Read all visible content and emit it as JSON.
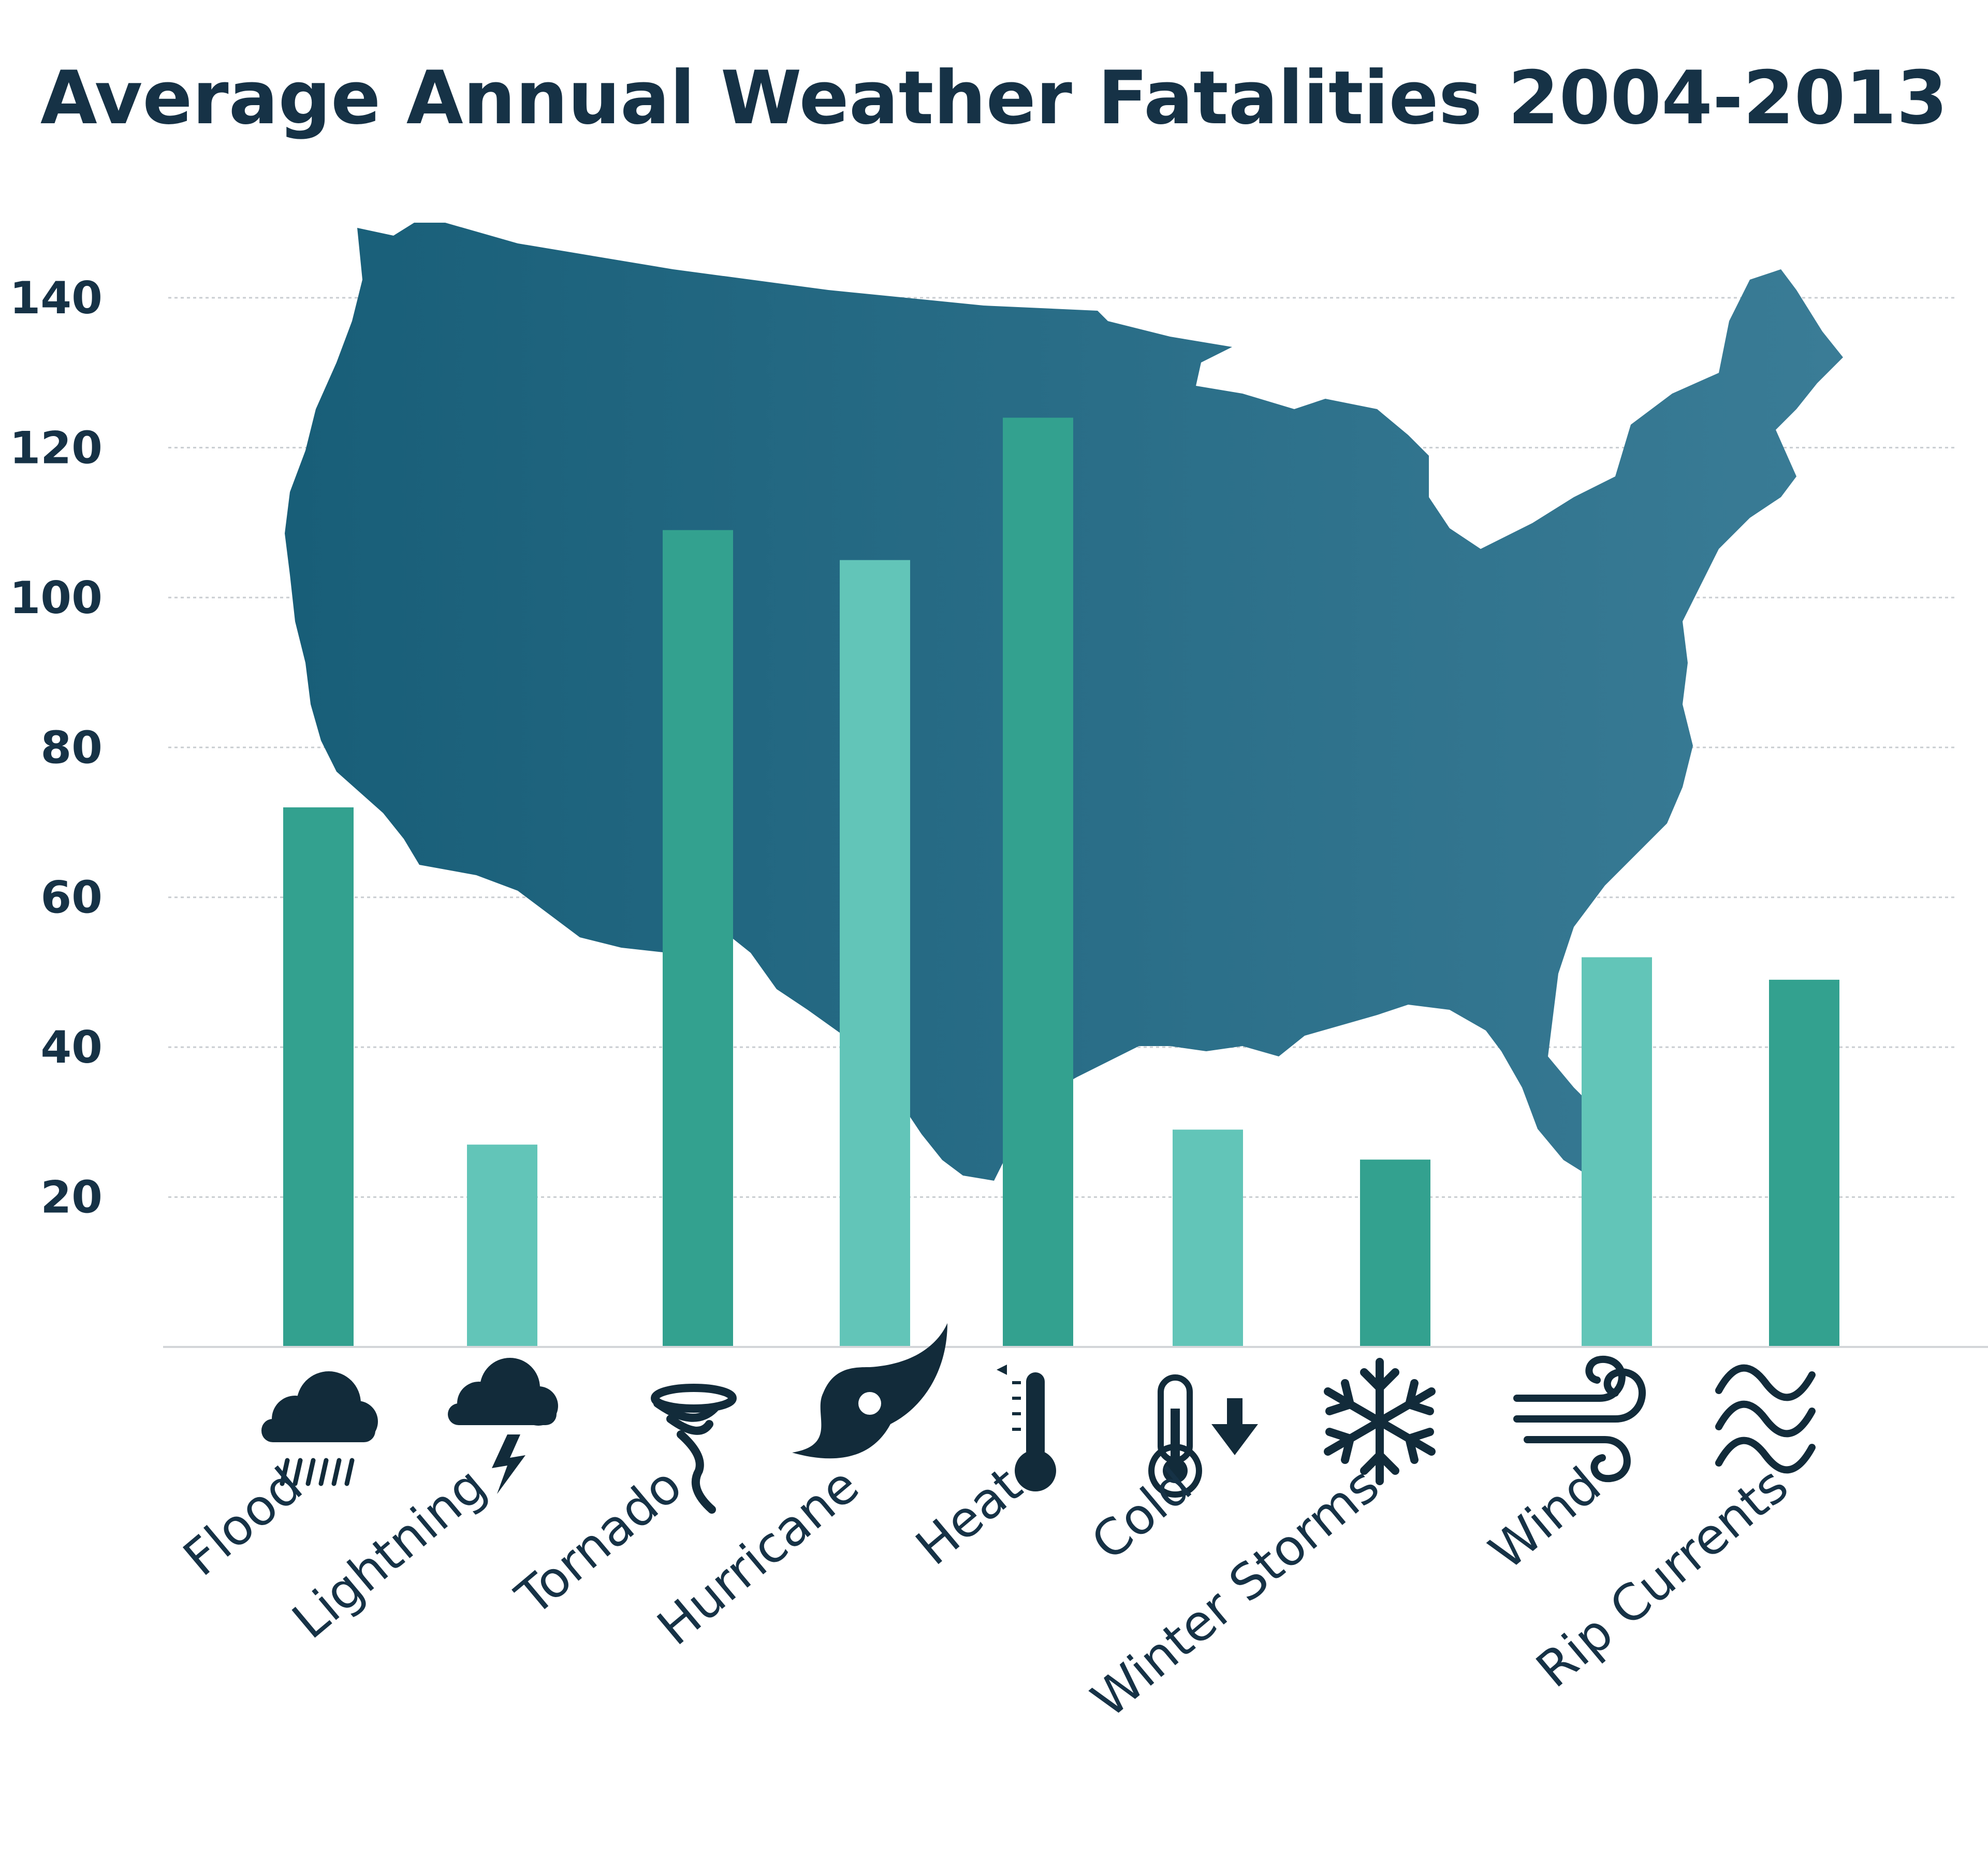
{
  "chart_data": {
    "type": "bar",
    "title": "Average Annual Weather Fatalities 2004-2013",
    "xlabel": "",
    "ylabel": "",
    "categories": [
      "Flood",
      "Lightning",
      "Tornado",
      "Hurricane",
      "Heat",
      "Cold",
      "Winter Storms",
      "Wind",
      "Rip Currents"
    ],
    "values": [
      72,
      27,
      109,
      105,
      124,
      29,
      25,
      52,
      49
    ],
    "icons": [
      "rain-cloud-icon",
      "lightning-cloud-icon",
      "tornado-icon",
      "hurricane-icon",
      "thermometer-icon",
      "cold-thermometer-icon",
      "snowflake-icon",
      "wind-icon",
      "waves-icon"
    ],
    "ylim": [
      0,
      140
    ],
    "yticks": [
      20,
      40,
      60,
      80,
      100,
      120,
      140
    ],
    "grid": true,
    "legend": "none",
    "background": "map of the contiguous United States",
    "colors": {
      "bar_dark": "#33a18f",
      "bar_light": "#62c5b8",
      "map_left": "#185e78",
      "map_right": "#3a7c96",
      "icon": "#122b3a",
      "text": "#163246"
    }
  }
}
